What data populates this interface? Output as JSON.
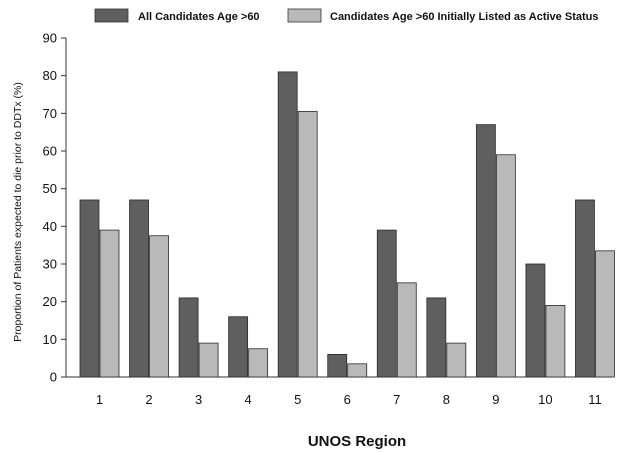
{
  "chart_data": {
    "type": "bar",
    "title": "",
    "xlabel": "UNOS Region",
    "ylabel": "Proportion of Patients expected to die prior to DDTx (%)",
    "ylim": [
      0,
      90
    ],
    "yticks": [
      0,
      10,
      20,
      30,
      40,
      50,
      60,
      70,
      80,
      90
    ],
    "categories": [
      "1",
      "2",
      "3",
      "4",
      "5",
      "6",
      "7",
      "8",
      "9",
      "10",
      "11"
    ],
    "series": [
      {
        "name": "All Candidates Age >60",
        "color": "#5f5f5f",
        "values": [
          47,
          47,
          21,
          16,
          81,
          6,
          39,
          21,
          67,
          30,
          47
        ]
      },
      {
        "name": "Candidates Age >60 Initially Listed as Active Status",
        "color": "#b9b9b9",
        "values": [
          39,
          37.5,
          9,
          7.5,
          70.5,
          3.5,
          25,
          9,
          59,
          19,
          33.5
        ]
      }
    ],
    "legend": "top",
    "grid": false
  }
}
